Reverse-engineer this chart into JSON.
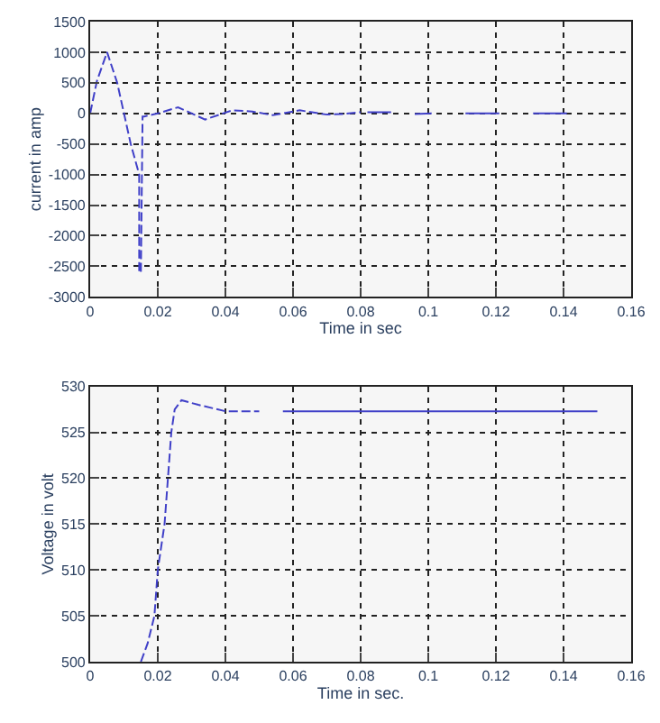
{
  "chart_data": [
    {
      "type": "line",
      "xlabel": "Time in sec",
      "ylabel": "current in amp",
      "xlim": [
        0,
        0.16
      ],
      "xticks": [
        0,
        0.02,
        0.04,
        0.06,
        0.08,
        0.1,
        0.12,
        0.14,
        0.16
      ],
      "ylim": [
        -3000,
        1500
      ],
      "yticks": [
        -3000,
        -2500,
        -2000,
        -1500,
        -1000,
        -500,
        0,
        500,
        1000,
        1500
      ],
      "grid": true,
      "line_style": "dashed",
      "series": [
        {
          "color": "#4040c8",
          "x": [
            0,
            0.002,
            0.005,
            0.008,
            0.01,
            0.012,
            0.0145,
            0.0145,
            0.015,
            0.0155,
            0.016,
            0.02,
            0.026,
            0.034,
            0.042,
            0.048,
            0.054,
            0.062,
            0.07,
            0.075,
            0.08
          ],
          "values": [
            0,
            530,
            1000,
            500,
            0,
            -500,
            -1000,
            -2600,
            -2600,
            -50,
            -50,
            0,
            100,
            -100,
            50,
            30,
            -30,
            50,
            -20,
            -10,
            20
          ]
        },
        {
          "color": "#4040c8",
          "line_style": "solid",
          "x": [
            0.082,
            0.089,
            0.091,
            0.096,
            0.101,
            0.103,
            0.111,
            0.121,
            0.123,
            0.131,
            0.141
          ],
          "values": [
            20,
            20,
            null,
            -10,
            0,
            null,
            0,
            0,
            null,
            0,
            0
          ]
        }
      ]
    },
    {
      "type": "line",
      "xlabel": "Time in sec.",
      "ylabel": "Voltage in volt",
      "xlim": [
        0,
        0.16
      ],
      "xticks": [
        0,
        0.02,
        0.04,
        0.06,
        0.08,
        0.1,
        0.12,
        0.14,
        0.16
      ],
      "ylim": [
        500,
        530
      ],
      "yticks": [
        500,
        505,
        510,
        515,
        520,
        525,
        530
      ],
      "grid": true,
      "line_style": "dashed",
      "series": [
        {
          "color": "#4040c8",
          "x": [
            0.015,
            0.017,
            0.019,
            0.02,
            0.022,
            0.023,
            0.024,
            0.025,
            0.027,
            0.032,
            0.04,
            0.05
          ],
          "values": [
            500,
            502,
            505,
            510,
            515,
            520,
            525,
            527.5,
            528.5,
            528,
            527.3,
            527.3
          ]
        },
        {
          "color": "#4040c8",
          "line_style": "solid",
          "x": [
            0.057,
            0.15
          ],
          "values": [
            527.3,
            527.3
          ]
        }
      ]
    }
  ]
}
